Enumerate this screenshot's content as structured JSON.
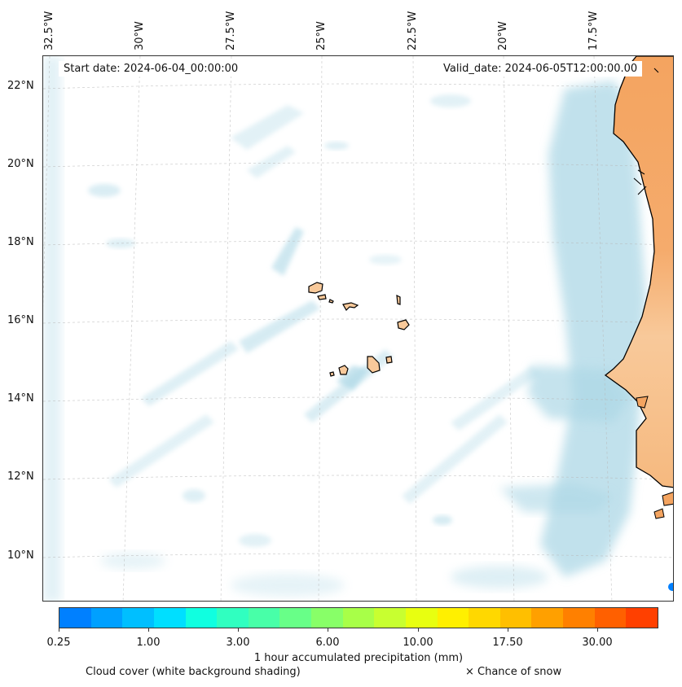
{
  "map": {
    "start_date": "Start date: 2024-06-04_00:00:00",
    "valid_date": "Valid_date: 2024-06-05T12:00:00.00",
    "longitude_labels": [
      "32.5°W",
      "30°W",
      "27.5°W",
      "25°W",
      "22.5°W",
      "20°W",
      "17.5°W"
    ],
    "latitude_labels": [
      "22°N",
      "20°N",
      "18°N",
      "16°N",
      "14°N",
      "12°N",
      "10°N"
    ],
    "colors": {
      "land": "#f4a460",
      "land_light": "#f8c99a",
      "cloud": "#add8e6",
      "coastline": "#000000"
    }
  },
  "colorbar": {
    "tick_labels": [
      "0.25",
      "1.00",
      "3.00",
      "6.00",
      "10.00",
      "17.50",
      "30.00"
    ],
    "colors": [
      "#0080ff",
      "#00a0ff",
      "#00bfff",
      "#00dfff",
      "#10ffe0",
      "#30ffc0",
      "#48ffa8",
      "#68ff88",
      "#88ff68",
      "#a8ff48",
      "#c8ff30",
      "#e8ff10",
      "#fff000",
      "#ffd800",
      "#ffbf00",
      "#ffa000",
      "#ff8000",
      "#ff6000",
      "#ff4000"
    ],
    "label": "1 hour accumulated precipitation (mm)"
  },
  "legend": {
    "cloud_cover": "Cloud cover (white background shading)",
    "snow": "× Chance of snow"
  }
}
